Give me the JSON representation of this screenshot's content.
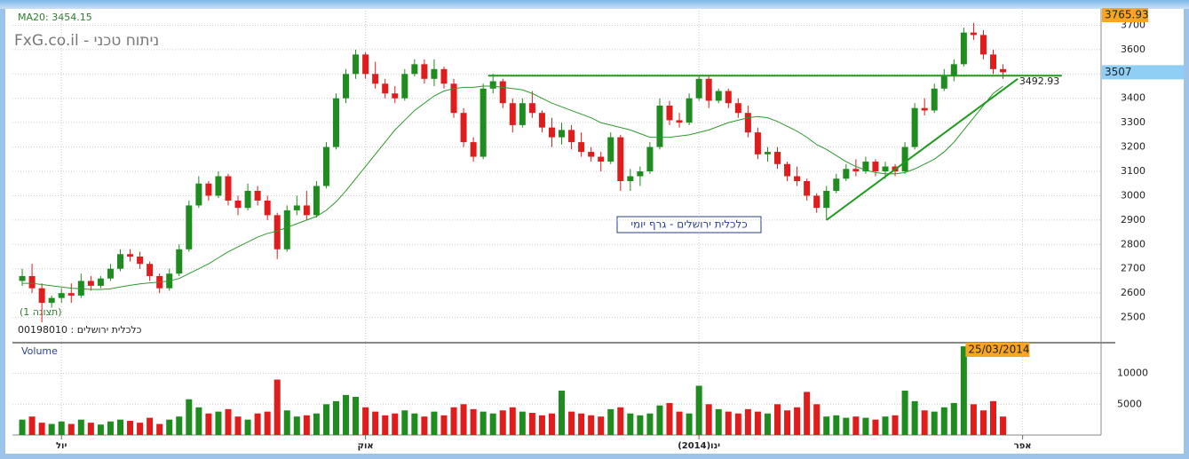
{
  "chart_data": {
    "type": "candlestick",
    "title": "FxG.co.il - ניתוח טכני",
    "ma_label": "MA20: 3454.15",
    "view_label": "(תצוגה 1)",
    "symbol_label": "00198010 : כלכלית ירושלים",
    "chart_caption": "כלכלית ירושלים - גרף יומי",
    "volume_title": "Volume",
    "price_high_label": 3765.93,
    "volume_date_label": "25/03/2014",
    "volume_date_index": 96,
    "up_color": "#1e8c1e",
    "down_color": "#e01c1c",
    "ma_color": "#2e9a2e",
    "trend_color": "#1e9a1e",
    "grid": true,
    "xlim": [
      -1,
      110
    ],
    "xticks": [
      {
        "value": 4,
        "label": "יול"
      },
      {
        "value": 35,
        "label": "אוק"
      },
      {
        "value": 69,
        "label": "(2014)ינו"
      },
      {
        "value": 102,
        "label": "אפר"
      }
    ],
    "ylim": [
      2400,
      3760
    ],
    "yticks": [
      2500,
      2600,
      2700,
      2800,
      2900,
      3000,
      3100,
      3200,
      3300,
      3400,
      3500,
      3600,
      3700
    ],
    "vol_ylim": [
      0,
      14700
    ],
    "vol_yticks": [
      5000,
      10000
    ],
    "ohlc": [
      [
        2650,
        2700,
        2630,
        2670
      ],
      [
        2670,
        2720,
        2600,
        2620
      ],
      [
        2620,
        2640,
        2480,
        2560
      ],
      [
        2560,
        2590,
        2540,
        2580
      ],
      [
        2580,
        2620,
        2560,
        2600
      ],
      [
        2600,
        2640,
        2560,
        2590
      ],
      [
        2590,
        2680,
        2580,
        2650
      ],
      [
        2650,
        2670,
        2610,
        2630
      ],
      [
        2630,
        2670,
        2620,
        2660
      ],
      [
        2660,
        2720,
        2650,
        2700
      ],
      [
        2700,
        2780,
        2690,
        2760
      ],
      [
        2760,
        2780,
        2730,
        2750
      ],
      [
        2750,
        2770,
        2700,
        2720
      ],
      [
        2720,
        2730,
        2650,
        2670
      ],
      [
        2670,
        2680,
        2600,
        2620
      ],
      [
        2620,
        2700,
        2610,
        2680
      ],
      [
        2680,
        2800,
        2670,
        2780
      ],
      [
        2780,
        2980,
        2770,
        2960
      ],
      [
        2960,
        3080,
        2950,
        3050
      ],
      [
        3050,
        3060,
        2980,
        3000
      ],
      [
        3000,
        3100,
        2990,
        3080
      ],
      [
        3080,
        3090,
        2960,
        2980
      ],
      [
        2980,
        3000,
        2920,
        2950
      ],
      [
        2950,
        3050,
        2940,
        3020
      ],
      [
        3020,
        3040,
        2960,
        2980
      ],
      [
        2980,
        3000,
        2900,
        2920
      ],
      [
        2920,
        2930,
        2740,
        2780
      ],
      [
        2780,
        2960,
        2770,
        2940
      ],
      [
        2940,
        3000,
        2920,
        2960
      ],
      [
        2960,
        3020,
        2900,
        2920
      ],
      [
        2920,
        3060,
        2910,
        3040
      ],
      [
        3040,
        3220,
        3030,
        3200
      ],
      [
        3200,
        3420,
        3190,
        3400
      ],
      [
        3400,
        3520,
        3380,
        3500
      ],
      [
        3500,
        3600,
        3480,
        3580
      ],
      [
        3580,
        3590,
        3480,
        3500
      ],
      [
        3500,
        3550,
        3440,
        3460
      ],
      [
        3460,
        3480,
        3400,
        3420
      ],
      [
        3420,
        3450,
        3380,
        3400
      ],
      [
        3400,
        3520,
        3390,
        3500
      ],
      [
        3500,
        3560,
        3490,
        3540
      ],
      [
        3540,
        3560,
        3460,
        3480
      ],
      [
        3480,
        3560,
        3450,
        3520
      ],
      [
        3520,
        3530,
        3440,
        3460
      ],
      [
        3460,
        3480,
        3320,
        3340
      ],
      [
        3340,
        3360,
        3200,
        3220
      ],
      [
        3220,
        3240,
        3140,
        3160
      ],
      [
        3160,
        3460,
        3150,
        3440
      ],
      [
        3440,
        3500,
        3420,
        3470
      ],
      [
        3470,
        3480,
        3360,
        3380
      ],
      [
        3380,
        3400,
        3260,
        3290
      ],
      [
        3290,
        3400,
        3280,
        3380
      ],
      [
        3380,
        3430,
        3320,
        3340
      ],
      [
        3340,
        3350,
        3260,
        3280
      ],
      [
        3280,
        3320,
        3200,
        3240
      ],
      [
        3240,
        3300,
        3210,
        3270
      ],
      [
        3270,
        3290,
        3190,
        3220
      ],
      [
        3220,
        3260,
        3160,
        3180
      ],
      [
        3180,
        3200,
        3140,
        3160
      ],
      [
        3160,
        3180,
        3100,
        3140
      ],
      [
        3140,
        3260,
        3130,
        3240
      ],
      [
        3240,
        3250,
        3020,
        3060
      ],
      [
        3060,
        3110,
        3020,
        3080
      ],
      [
        3080,
        3120,
        3040,
        3100
      ],
      [
        3100,
        3220,
        3090,
        3200
      ],
      [
        3200,
        3400,
        3190,
        3370
      ],
      [
        3370,
        3390,
        3290,
        3310
      ],
      [
        3310,
        3340,
        3280,
        3300
      ],
      [
        3300,
        3420,
        3290,
        3400
      ],
      [
        3400,
        3490,
        3390,
        3480
      ],
      [
        3480,
        3490,
        3360,
        3390
      ],
      [
        3390,
        3440,
        3380,
        3430
      ],
      [
        3430,
        3440,
        3360,
        3380
      ],
      [
        3380,
        3400,
        3320,
        3340
      ],
      [
        3340,
        3370,
        3240,
        3260
      ],
      [
        3260,
        3280,
        3150,
        3170
      ],
      [
        3170,
        3200,
        3140,
        3180
      ],
      [
        3180,
        3200,
        3110,
        3130
      ],
      [
        3130,
        3140,
        3060,
        3080
      ],
      [
        3080,
        3120,
        3040,
        3060
      ],
      [
        3060,
        3070,
        2980,
        3000
      ],
      [
        3000,
        3010,
        2930,
        2950
      ],
      [
        2950,
        3040,
        2900,
        3020
      ],
      [
        3020,
        3090,
        3010,
        3070
      ],
      [
        3070,
        3130,
        3060,
        3110
      ],
      [
        3110,
        3150,
        3080,
        3100
      ],
      [
        3100,
        3160,
        3090,
        3140
      ],
      [
        3140,
        3150,
        3080,
        3100
      ],
      [
        3100,
        3140,
        3070,
        3120
      ],
      [
        3120,
        3130,
        3080,
        3100
      ],
      [
        3100,
        3220,
        3090,
        3200
      ],
      [
        3200,
        3380,
        3190,
        3360
      ],
      [
        3360,
        3400,
        3330,
        3350
      ],
      [
        3350,
        3460,
        3340,
        3440
      ],
      [
        3440,
        3520,
        3430,
        3490
      ],
      [
        3490,
        3560,
        3470,
        3540
      ],
      [
        3540,
        3690,
        3530,
        3670
      ],
      [
        3670,
        3710,
        3640,
        3660
      ],
      [
        3660,
        3680,
        3560,
        3580
      ],
      [
        3580,
        3600,
        3500,
        3520
      ],
      [
        3520,
        3540,
        3480,
        3507
      ]
    ],
    "ma": [
      2640,
      2640,
      2635,
      2630,
      2625,
      2620,
      2618,
      2615,
      2615,
      2618,
      2625,
      2632,
      2638,
      2642,
      2645,
      2650,
      2660,
      2680,
      2700,
      2720,
      2745,
      2770,
      2790,
      2810,
      2830,
      2845,
      2855,
      2870,
      2885,
      2900,
      2915,
      2940,
      2975,
      3020,
      3070,
      3120,
      3170,
      3220,
      3270,
      3310,
      3350,
      3380,
      3410,
      3430,
      3440,
      3445,
      3445,
      3450,
      3450,
      3445,
      3440,
      3435,
      3420,
      3400,
      3380,
      3365,
      3350,
      3335,
      3320,
      3300,
      3290,
      3280,
      3270,
      3255,
      3240,
      3240,
      3240,
      3245,
      3250,
      3260,
      3270,
      3285,
      3300,
      3310,
      3320,
      3325,
      3320,
      3305,
      3285,
      3265,
      3240,
      3210,
      3190,
      3165,
      3140,
      3120,
      3105,
      3095,
      3090,
      3090,
      3095,
      3110,
      3130,
      3150,
      3180,
      3220,
      3270,
      3320,
      3370,
      3420,
      3450
    ],
    "volume": [
      2500,
      3000,
      2000,
      1800,
      2200,
      1800,
      2500,
      2000,
      1700,
      2200,
      2500,
      2300,
      2000,
      2800,
      1800,
      2500,
      3000,
      5800,
      4500,
      3500,
      3800,
      4200,
      3000,
      2500,
      3500,
      3800,
      9000,
      4000,
      3000,
      3200,
      3500,
      5000,
      5500,
      6500,
      6200,
      4500,
      3800,
      3200,
      3500,
      4000,
      3500,
      3000,
      3800,
      3200,
      4500,
      5000,
      4200,
      3800,
      3500,
      4000,
      4500,
      3800,
      3600,
      3200,
      3500,
      7200,
      3800,
      3500,
      3200,
      3000,
      4200,
      4500,
      3500,
      3200,
      3500,
      4800,
      5200,
      3800,
      3500,
      8000,
      5000,
      4200,
      3800,
      3500,
      4200,
      3800,
      3500,
      5000,
      4000,
      4500,
      7000,
      5000,
      3000,
      3200,
      2800,
      3000,
      2800,
      2500,
      3000,
      3200,
      7200,
      5500,
      4000,
      3800,
      4500,
      5200,
      14400,
      5000,
      4000,
      5500,
      3000
    ],
    "trendlines": [
      {
        "x": [
          47.5,
          106
        ],
        "y": [
          3492.93,
          3492.93
        ]
      },
      {
        "x": [
          82,
          101.5
        ],
        "y": [
          2900,
          3480
        ]
      }
    ]
  }
}
